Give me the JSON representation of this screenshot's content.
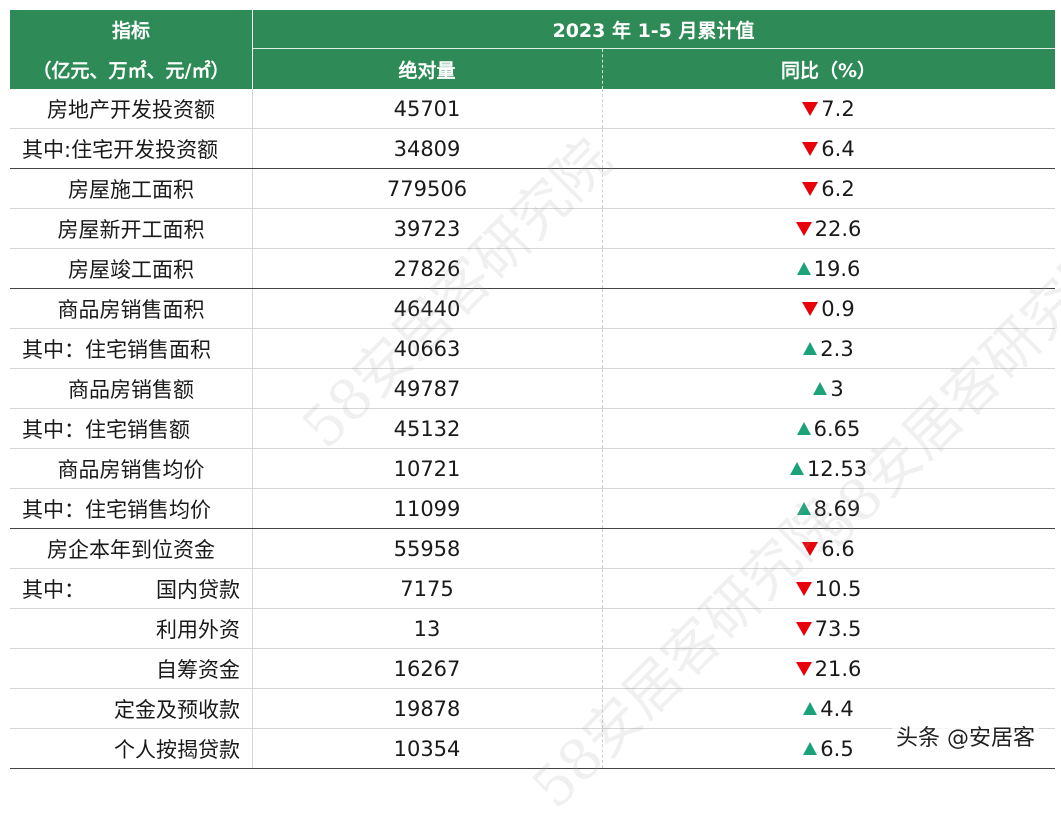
{
  "header": {
    "indicator_label": "指标",
    "unit_label": "（亿元、万㎡、元/㎡）",
    "period_label": "2023 年 1-5 月累计值",
    "absolute_label": "绝对量",
    "yoy_label": "同比（%）"
  },
  "rows": [
    {
      "name": "房地产开发投资额",
      "value": "45701",
      "dir": "down",
      "yoy": "7.2"
    },
    {
      "name": "其中:住宅开发投资额",
      "value": "34809",
      "dir": "down",
      "yoy": "6.4"
    },
    {
      "name": "房屋施工面积",
      "value": "779506",
      "dir": "down",
      "yoy": "6.2"
    },
    {
      "name": "房屋新开工面积",
      "value": "39723",
      "dir": "down",
      "yoy": "22.6"
    },
    {
      "name": "房屋竣工面积",
      "value": "27826",
      "dir": "up",
      "yoy": "19.6"
    },
    {
      "name": "商品房销售面积",
      "value": "46440",
      "dir": "down",
      "yoy": "0.9"
    },
    {
      "name": "其中：住宅销售面积",
      "value": "40663",
      "dir": "up",
      "yoy": "2.3"
    },
    {
      "name": "商品房销售额",
      "value": "49787",
      "dir": "up",
      "yoy": "3"
    },
    {
      "name": "其中：住宅销售额",
      "value": "45132",
      "dir": "up",
      "yoy": "6.65"
    },
    {
      "name": "商品房销售均价",
      "value": "10721",
      "dir": "up",
      "yoy": "12.53"
    },
    {
      "name": "其中：住宅销售均价",
      "value": "11099",
      "dir": "up",
      "yoy": "8.69"
    },
    {
      "name": "房企本年到位资金",
      "value": "55958",
      "dir": "down",
      "yoy": "6.6"
    },
    {
      "prefix": "其中：",
      "name": "国内贷款",
      "value": "7175",
      "dir": "down",
      "yoy": "10.5"
    },
    {
      "name": "利用外资",
      "value": "13",
      "dir": "down",
      "yoy": "73.5"
    },
    {
      "name": "自筹资金",
      "value": "16267",
      "dir": "down",
      "yoy": "21.6"
    },
    {
      "name": "定金及预收款",
      "value": "19878",
      "dir": "up",
      "yoy": "4.4"
    },
    {
      "name": "个人按揭贷款",
      "value": "10354",
      "dir": "up",
      "yoy": "6.5"
    }
  ],
  "watermark_text": "58安居客研究院",
  "credit": "头条 @安居客",
  "colors": {
    "header_bg": "#2e8b57",
    "down": "#e8000b",
    "up": "#1aa37a"
  }
}
